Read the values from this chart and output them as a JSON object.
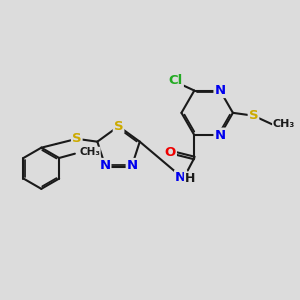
{
  "bg_color": "#dcdcdc",
  "bond_color": "#1a1a1a",
  "bond_width": 1.5,
  "dbo": 0.07,
  "atom_colors": {
    "C": "#1a1a1a",
    "N": "#0000ee",
    "O": "#ee0000",
    "S": "#ccaa00",
    "Cl": "#22aa22",
    "H": "#1a1a1a"
  },
  "font_size": 9.5,
  "fig_bg": "#dcdcdc"
}
